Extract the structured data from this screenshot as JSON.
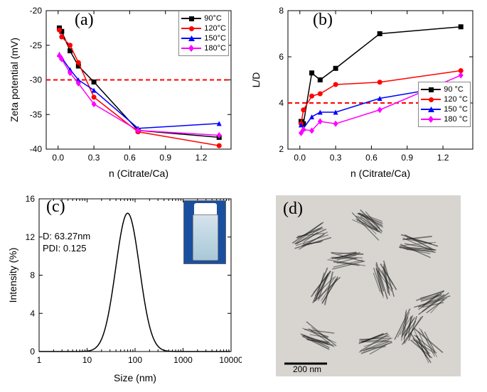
{
  "panelA": {
    "label": "(a)",
    "type": "scatter-line",
    "xlabel": "n (Citrate/Ca)",
    "ylabel": "Zeta potential (mV)",
    "xlim": [
      -0.1,
      1.45
    ],
    "xticks": [
      0.0,
      0.3,
      0.6,
      0.9,
      1.2
    ],
    "ylim": [
      -40,
      -20
    ],
    "yticks": [
      -40,
      -35,
      -30,
      -25,
      -20
    ],
    "series": [
      {
        "name": "90°C",
        "color": "#000000",
        "marker": "square",
        "x": [
          0.01,
          0.03,
          0.1,
          0.17,
          0.3,
          0.67,
          1.35
        ],
        "y": [
          -22.5,
          -23.0,
          -25.8,
          -28.0,
          -30.3,
          -37.3,
          -38.3
        ]
      },
      {
        "name": "120°C",
        "color": "#ff0000",
        "marker": "circle",
        "x": [
          0.01,
          0.03,
          0.1,
          0.17,
          0.3,
          0.67,
          1.35
        ],
        "y": [
          -22.8,
          -23.8,
          -25.0,
          -27.5,
          -32.5,
          -37.5,
          -39.5
        ]
      },
      {
        "name": "150°C",
        "color": "#0000ff",
        "marker": "triangle",
        "x": [
          0.01,
          0.03,
          0.1,
          0.17,
          0.3,
          0.67,
          1.35
        ],
        "y": [
          -26.3,
          -26.8,
          -28.5,
          -30.0,
          -31.5,
          -37.0,
          -36.3
        ]
      },
      {
        "name": "180°C",
        "color": "#ff00ff",
        "marker": "diamond",
        "x": [
          0.01,
          0.03,
          0.1,
          0.17,
          0.3,
          0.67,
          1.35
        ],
        "y": [
          -26.5,
          -27.0,
          -29.0,
          -30.5,
          -33.5,
          -37.3,
          -38.0
        ]
      }
    ],
    "hline": {
      "y": -30,
      "color": "#ff0000",
      "dash": true
    },
    "label_fontsize": 14,
    "tick_fontsize": 12,
    "background_color": "#ffffff",
    "border_color": "#000000",
    "line_width": 1.5,
    "marker_size": 7
  },
  "panelB": {
    "label": "(b)",
    "type": "scatter-line",
    "xlabel": "n (Citrate/Ca)",
    "ylabel": "L/D",
    "xlim": [
      -0.1,
      1.45
    ],
    "xticks": [
      0.0,
      0.3,
      0.6,
      0.9,
      1.2
    ],
    "ylim": [
      2,
      8
    ],
    "yticks": [
      2,
      4,
      6,
      8
    ],
    "series": [
      {
        "name": "90 °C",
        "color": "#000000",
        "marker": "square",
        "x": [
          0.01,
          0.03,
          0.1,
          0.17,
          0.3,
          0.67,
          1.35
        ],
        "y": [
          3.2,
          3.1,
          5.3,
          5.0,
          5.5,
          7.0,
          7.3
        ]
      },
      {
        "name": "120 °C",
        "color": "#ff0000",
        "marker": "circle",
        "x": [
          0.01,
          0.03,
          0.1,
          0.17,
          0.3,
          0.67,
          1.35
        ],
        "y": [
          3.1,
          3.7,
          4.3,
          4.4,
          4.8,
          4.9,
          5.4
        ]
      },
      {
        "name": "150 °C",
        "color": "#0000ff",
        "marker": "triangle",
        "x": [
          0.01,
          0.03,
          0.1,
          0.17,
          0.3,
          0.67,
          1.35
        ],
        "y": [
          3.05,
          2.9,
          3.4,
          3.6,
          3.6,
          4.2,
          4.8
        ]
      },
      {
        "name": "180 °C",
        "color": "#ff00ff",
        "marker": "diamond",
        "x": [
          0.01,
          0.03,
          0.1,
          0.17,
          0.3,
          0.67,
          1.35
        ],
        "y": [
          2.7,
          2.85,
          2.8,
          3.2,
          3.1,
          3.7,
          5.2
        ]
      }
    ],
    "hline": {
      "y": 4,
      "color": "#ff0000",
      "dash": true
    },
    "label_fontsize": 14,
    "tick_fontsize": 12,
    "background_color": "#ffffff",
    "border_color": "#000000",
    "line_width": 1.5,
    "marker_size": 7
  },
  "panelC": {
    "label": "(c)",
    "type": "line",
    "xlabel": "Size (nm)",
    "ylabel": "Intensity (%)",
    "xscale": "log",
    "xlim": [
      1,
      10000
    ],
    "xticks": [
      1,
      10,
      100,
      1000,
      10000
    ],
    "ylim": [
      0,
      16
    ],
    "yticks": [
      0,
      4,
      8,
      12,
      16
    ],
    "info_lines": [
      "D: 63.27nm",
      "PDI: 0.125"
    ],
    "curve": {
      "color": "#000000",
      "peak_x": 70,
      "peak_y": 14.5,
      "sigma_log": 0.35
    },
    "inset_photo": {
      "vial_cap": "#ffffff",
      "vial_body": "#bcd6e4",
      "bg": "#1a4fa0"
    },
    "label_fontsize": 14,
    "tick_fontsize": 12,
    "background_color": "#ffffff",
    "border_color": "#000000",
    "line_width": 1.5
  },
  "panelD": {
    "label": "(d)",
    "type": "tem-image",
    "scalebar_text": "200 nm",
    "scalebar_color": "#000000",
    "bg": "#d8d5d0"
  },
  "legend_labels_a": [
    "90°C",
    "120°C",
    "150°C",
    "180°C"
  ],
  "legend_labels_b": [
    "90 °C",
    "120 °C",
    "150 °C",
    "180 °C"
  ]
}
